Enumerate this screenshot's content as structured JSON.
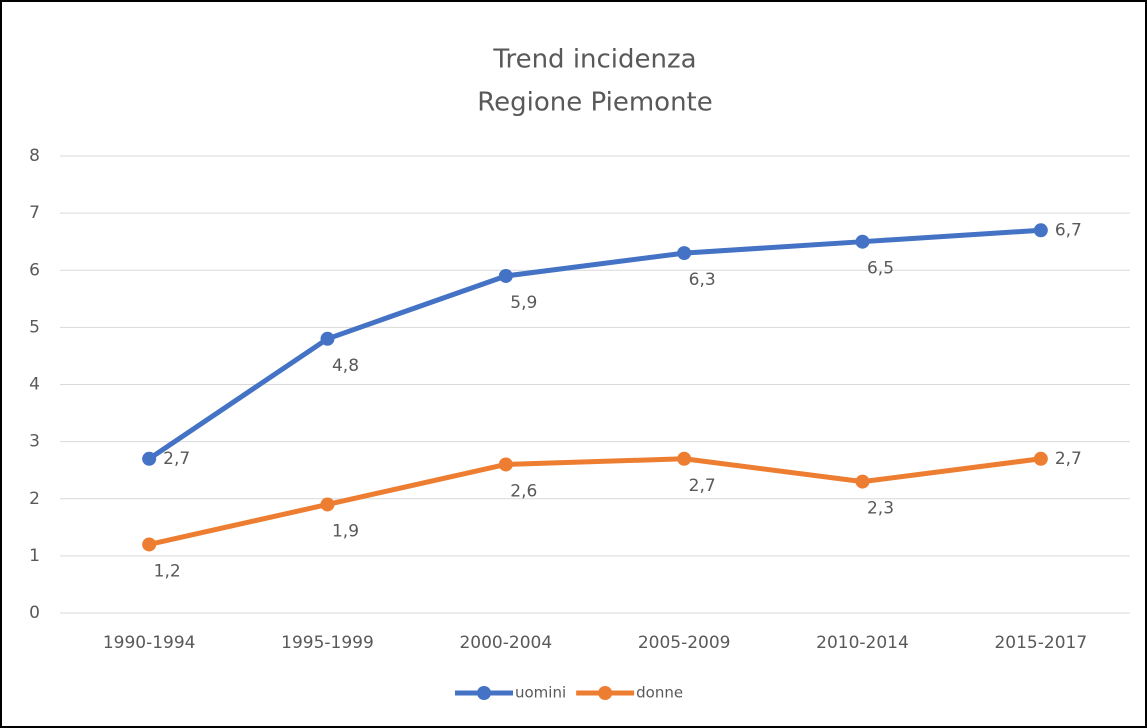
{
  "chart_data": {
    "type": "line",
    "title": "Trend incidenza",
    "subtitle": "Regione Piemonte",
    "categories": [
      "1990-1994",
      "1995-1999",
      "2000-2004",
      "2005-2009",
      "2010-2014",
      "2015-2017"
    ],
    "series": [
      {
        "name": "uomini",
        "color": "#4472c4",
        "values": [
          2.7,
          4.8,
          5.9,
          6.3,
          6.5,
          6.7
        ],
        "value_labels": [
          "2,7",
          "4,8",
          "5,9",
          "6,3",
          "6,5",
          "6,7"
        ]
      },
      {
        "name": "donne",
        "color": "#ed7d31",
        "values": [
          1.2,
          1.9,
          2.6,
          2.7,
          2.3,
          2.7
        ],
        "value_labels": [
          "1,2",
          "1,9",
          "2,6",
          "2,7",
          "2,3",
          "2,7"
        ]
      }
    ],
    "ylim": [
      0,
      8
    ],
    "yticks": [
      0,
      1,
      2,
      3,
      4,
      5,
      6,
      7,
      8
    ],
    "grid": true,
    "legend": "bottom"
  }
}
